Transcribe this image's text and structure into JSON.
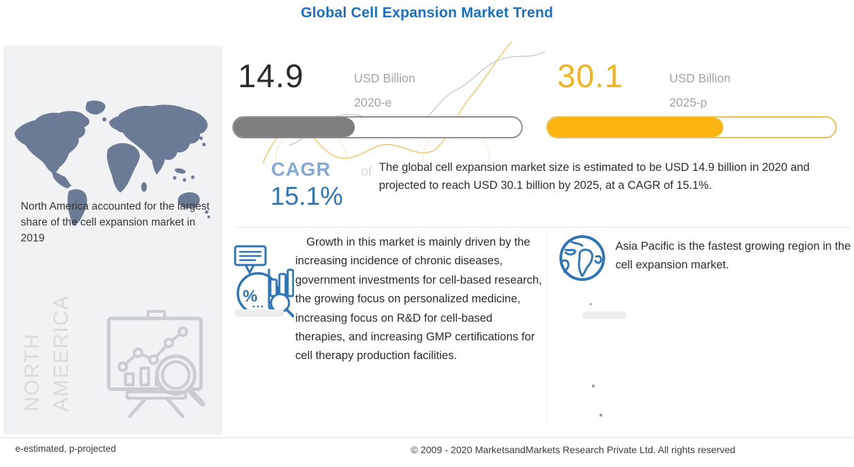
{
  "title": "Global Cell Expansion Market Trend",
  "left_panel": {
    "caption": "North America accounted for the largest share of the cell expansion market in 2019",
    "watermark": {
      "line1": "NORTH",
      "line2": "AMEERICA"
    }
  },
  "stats": {
    "current": {
      "value": "14.9",
      "unit": "USD Billion",
      "period": "2020-e",
      "fill_pct": 42
    },
    "projected": {
      "value": "30.1",
      "unit": "USD Billion",
      "period": "2025-p",
      "fill_pct": 61
    }
  },
  "cagr": {
    "label": "CAGR",
    "connector": "of",
    "value": "15.1%"
  },
  "summary": "The global cell expansion market size is estimated to be USD 14.9 billion in 2020 and projected to reach USD 30.1 billion by 2025, at a CAGR of 15.1%.",
  "drivers": "Growth in this market is mainly driven by the increasing incidence of chronic diseases, government investments for cell-based research, the growing focus on personalized medicine, increasing focus on R&D for cell-based therapies, and increasing GMP certifications for cell therapy production facilities.",
  "asia_pacific": "Asia Pacific is the fastest growing region in the cell expansion market.",
  "footer": {
    "note": "e-estimated, p-projected",
    "copyright": "© 2009 - 2020 MarketsandMarkets Research Private Ltd. All rights reserved"
  },
  "icons": {
    "percent_glyph": "%"
  },
  "colors": {
    "title_blue": "#1A6FC3",
    "accent_blue": "#2E75B6",
    "light_blue": "#84AAD7",
    "accent_yellow": "#FCB510",
    "yellow_text": "#F2B31B",
    "bar_gray": "#7E7E7E",
    "map_slate": "#6C7B95",
    "panel_bg": "#F1F2F4"
  },
  "chart_data": {
    "type": "bar",
    "title": "Global Cell Expansion Market Trend",
    "categories": [
      "2020-e",
      "2025-p"
    ],
    "series": [
      {
        "name": "Market size (USD Billion)",
        "values": [
          14.9,
          30.1
        ]
      }
    ],
    "unit": "USD Billion",
    "cagr_percent": 15.1,
    "legend_position": "none",
    "annotations": [
      "e-estimated, p-projected",
      "North America accounted for the largest share of the cell expansion market in 2019",
      "Asia Pacific is the fastest growing region in the cell expansion market."
    ]
  }
}
